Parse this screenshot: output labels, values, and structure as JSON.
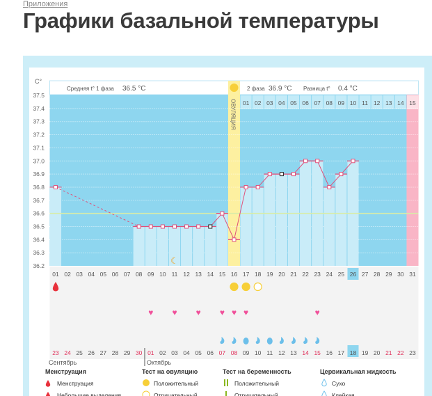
{
  "breadcrumb": "Приложения",
  "page_title": "Графики базальной температуры",
  "chart_data": {
    "type": "line",
    "y_unit": "C°",
    "ylim": [
      36.2,
      37.5
    ],
    "y_ticks": [
      "37.5",
      "37.4",
      "37.3",
      "37.2",
      "37.1",
      "37.0",
      "36.9",
      "36.8",
      "36.7",
      "36.6",
      "36.5",
      "36.4",
      "36.3",
      "36.2"
    ],
    "cover_line": 36.6,
    "phase1_label": "Средняя t° 1 фаза",
    "phase1_value": "36.5 °C",
    "phase2_label": "2 фаза",
    "phase2_value": "36.9 °C",
    "diff_label": "Разница t°",
    "diff_value": "0.4 °C",
    "ovulation_label": "ОВУЛЯЦИЯ",
    "ovulation_day": 16,
    "period_day": 31,
    "cycle_days": [
      "01",
      "02",
      "03",
      "04",
      "05",
      "06",
      "07",
      "08",
      "09",
      "10",
      "11",
      "12",
      "13",
      "14",
      "15",
      "16",
      "17",
      "18",
      "19",
      "20",
      "21",
      "22",
      "23",
      "24",
      "25",
      "26",
      "27",
      "28",
      "29",
      "30",
      "31"
    ],
    "today_day": 26,
    "phase2_days": [
      "01",
      "02",
      "03",
      "04",
      "05",
      "06",
      "07",
      "08",
      "09",
      "10",
      "11",
      "12",
      "13",
      "14",
      "15"
    ],
    "temperatures": [
      {
        "day": 1,
        "t": 36.8
      },
      {
        "day": 8,
        "t": 36.5
      },
      {
        "day": 9,
        "t": 36.5
      },
      {
        "day": 10,
        "t": 36.5
      },
      {
        "day": 11,
        "t": 36.5
      },
      {
        "day": 12,
        "t": 36.5
      },
      {
        "day": 13,
        "t": 36.5
      },
      {
        "day": 14,
        "t": 36.5,
        "edited": true
      },
      {
        "day": 15,
        "t": 36.6
      },
      {
        "day": 16,
        "t": 36.4
      },
      {
        "day": 17,
        "t": 36.8
      },
      {
        "day": 18,
        "t": 36.8
      },
      {
        "day": 19,
        "t": 36.9
      },
      {
        "day": 20,
        "t": 36.9,
        "edited": true
      },
      {
        "day": 21,
        "t": 36.9
      },
      {
        "day": 22,
        "t": 37.0
      },
      {
        "day": 23,
        "t": 37.0
      },
      {
        "day": 24,
        "t": 36.8
      },
      {
        "day": 25,
        "t": 36.9
      },
      {
        "day": 26,
        "t": 37.0
      }
    ],
    "moon_day": 11,
    "menstruation_days": [
      1
    ],
    "ovulation_test": [
      {
        "day": 16,
        "result": "positive"
      },
      {
        "day": 17,
        "result": "positive"
      },
      {
        "day": 18,
        "result": "negative"
      }
    ],
    "intercourse_days": [
      9,
      11,
      13,
      15,
      16,
      17,
      23
    ],
    "cervical_fluid": [
      {
        "day": 15,
        "type": "small"
      },
      {
        "day": 16,
        "type": "small"
      },
      {
        "day": 17,
        "type": "big"
      },
      {
        "day": 18,
        "type": "small"
      },
      {
        "day": 19,
        "type": "big"
      },
      {
        "day": 20,
        "type": "small"
      },
      {
        "day": 21,
        "type": "small"
      },
      {
        "day": 22,
        "type": "small"
      },
      {
        "day": 23,
        "type": "small"
      }
    ],
    "dates": [
      "23",
      "24",
      "25",
      "26",
      "27",
      "28",
      "29",
      "30",
      "01",
      "02",
      "03",
      "04",
      "05",
      "06",
      "07",
      "08",
      "09",
      "10",
      "11",
      "12",
      "13",
      "14",
      "15",
      "16",
      "17",
      "18",
      "19",
      "20",
      "21",
      "22",
      "23"
    ],
    "weekend_idx": [
      0,
      1,
      7,
      8,
      14,
      15,
      21,
      22,
      28,
      29
    ],
    "months": [
      "Сентябрь",
      "Октябрь"
    ]
  },
  "legend": [
    {
      "title": "Менструация",
      "items": [
        {
          "icon": "blood-drop",
          "label": "Менструация"
        },
        {
          "icon": "small-drop",
          "label": "Небольшие выделения"
        }
      ]
    },
    {
      "title": "Тест на овуляцию",
      "items": [
        {
          "icon": "circle-filled",
          "label": "Положительный"
        },
        {
          "icon": "circle-outline",
          "label": "Отрицательный"
        }
      ]
    },
    {
      "title": "Тест на беременность",
      "items": [
        {
          "icon": "double-bar",
          "label": "Положительный"
        },
        {
          "icon": "single-bar",
          "label": "Отрицательный"
        }
      ]
    },
    {
      "title": "Цервикальная жидкость",
      "items": [
        {
          "icon": "drop-outline",
          "label": "Сухо"
        },
        {
          "icon": "drop-sticky",
          "label": "Клейкая"
        }
      ]
    }
  ],
  "colors": {
    "plot": "#8ed6ef",
    "bar": "#c9ecf8",
    "line": "#e0507a",
    "ovulation": "#fdf0a0",
    "period": "#f9b5c6",
    "accent": "#f7cf38",
    "heart": "#f0509a",
    "drop": "#6cbfea"
  }
}
